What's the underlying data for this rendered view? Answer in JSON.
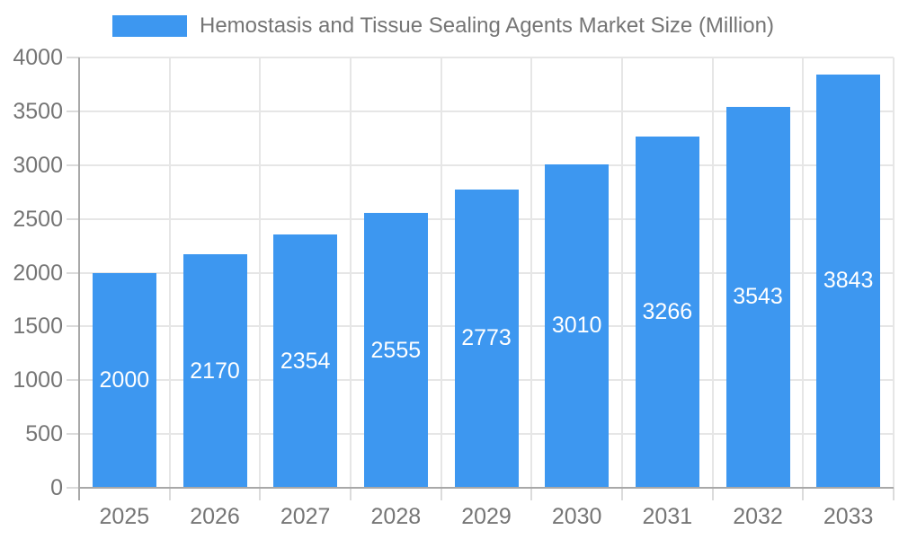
{
  "legend": {
    "label": "Hemostasis and Tissue Sealing Agents Market Size (Million)"
  },
  "chart_data": {
    "type": "bar",
    "title": "Hemostasis and Tissue Sealing Agents Market Size (Million)",
    "categories": [
      "2025",
      "2026",
      "2027",
      "2028",
      "2029",
      "2030",
      "2031",
      "2032",
      "2033"
    ],
    "values": [
      2000,
      2170,
      2354,
      2555,
      2773,
      3010,
      3266,
      3543,
      3843
    ],
    "series": [
      {
        "name": "Hemostasis and Tissue Sealing Agents Market Size (Million)",
        "values": [
          2000,
          2170,
          2354,
          2555,
          2773,
          3010,
          3266,
          3543,
          3843
        ]
      }
    ],
    "xlabel": "",
    "ylabel": "",
    "ylim": [
      0,
      4000
    ],
    "ytick_interval": 500,
    "yticks": [
      0,
      500,
      1000,
      1500,
      2000,
      2500,
      3000,
      3500,
      4000
    ],
    "grid": true,
    "legend_position": "top-left",
    "bar_labels_position": "inside-center"
  },
  "colors": {
    "bar": "#3D97F0",
    "grid": "#E6E6E6",
    "axis": "#A8A8A8",
    "tick": "#DBDBDB",
    "text": "#757575",
    "bar_label": "#FFFFFF",
    "background": "#FFFFFF"
  }
}
